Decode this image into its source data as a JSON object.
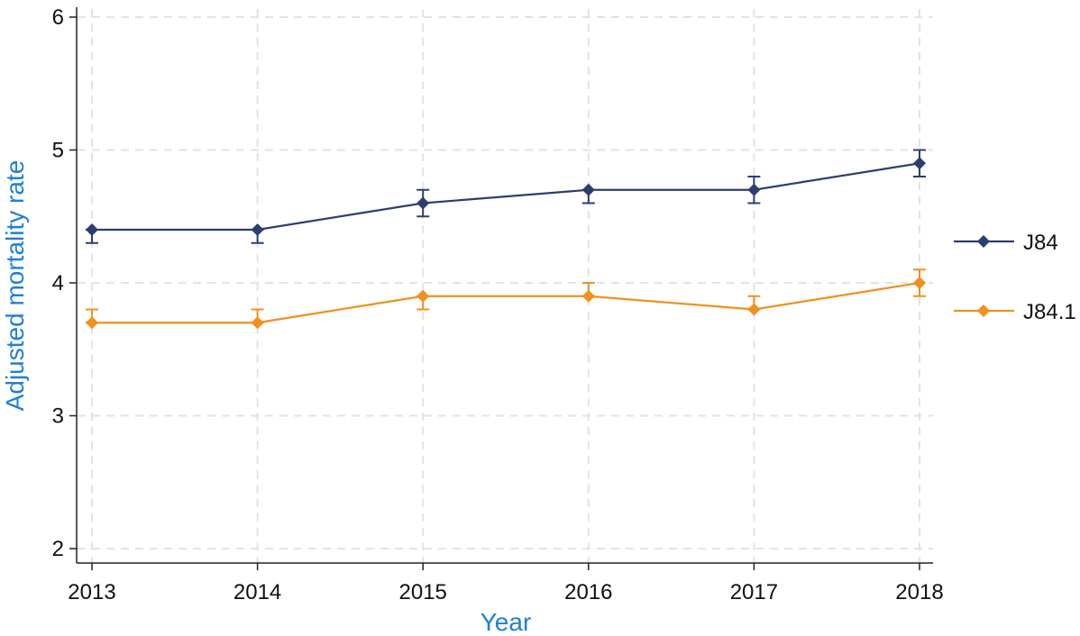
{
  "colors": {
    "axis_title": "#1f7fd6",
    "grid": "#e3e3e3",
    "axis": "#222222"
  },
  "chart_data": {
    "type": "line",
    "title": "",
    "xlabel": "Year",
    "ylabel": "Adjusted mortality rate",
    "x": [
      2013,
      2014,
      2015,
      2016,
      2017,
      2018
    ],
    "xticks": [
      "2013",
      "2014",
      "2015",
      "2016",
      "2017",
      "2018"
    ],
    "yticks": [
      "2",
      "3",
      "4",
      "5",
      "6"
    ],
    "ylim": [
      2,
      6
    ],
    "grid": true,
    "legend_position": "right",
    "series": [
      {
        "name": "J84",
        "color": "#2b3f6e",
        "marker": "diamond",
        "values": [
          4.4,
          4.4,
          4.6,
          4.7,
          4.7,
          4.9
        ],
        "lower": [
          4.3,
          4.3,
          4.5,
          4.6,
          4.6,
          4.8
        ],
        "upper": [
          4.4,
          4.4,
          4.7,
          4.7,
          4.8,
          5.0
        ]
      },
      {
        "name": "J84.1",
        "color": "#f0901e",
        "marker": "diamond",
        "values": [
          3.7,
          3.7,
          3.9,
          3.9,
          3.8,
          4.0
        ],
        "lower": [
          3.7,
          3.7,
          3.8,
          3.9,
          3.8,
          3.9
        ],
        "upper": [
          3.8,
          3.8,
          3.9,
          4.0,
          3.9,
          4.1
        ]
      }
    ]
  }
}
